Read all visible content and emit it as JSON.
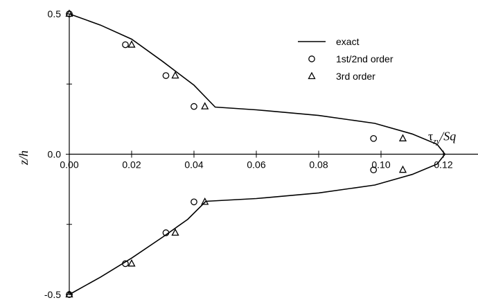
{
  "chart_data": {
    "type": "line",
    "title": "",
    "xlabel": "",
    "ylabel": "z/h",
    "xlim": [
      0,
      0.12
    ],
    "ylim": [
      -0.5,
      0.5
    ],
    "x_ticks": [
      "0.00",
      "0.02",
      "0.04",
      "0.06",
      "0.08",
      "0.10",
      "0.12"
    ],
    "y_ticks": [
      "0.5",
      "0.0",
      "-0.5"
    ],
    "x_axis_annotation": {
      "symbol": "τ",
      "subscript": "zy",
      "rest": "/Sq"
    },
    "legend_position": "top-right",
    "grid": false,
    "series": [
      {
        "name": "exact",
        "type": "line",
        "points": [
          [
            0.0,
            0.5
          ],
          [
            0.01,
            0.46
          ],
          [
            0.02,
            0.41
          ],
          [
            0.03,
            0.33
          ],
          [
            0.04,
            0.246
          ],
          [
            0.0468,
            0.168
          ],
          [
            0.06,
            0.158
          ],
          [
            0.08,
            0.138
          ],
          [
            0.098,
            0.11
          ],
          [
            0.11,
            0.072
          ],
          [
            0.118,
            0.035
          ],
          [
            0.1205,
            0.0
          ],
          [
            0.118,
            -0.035
          ],
          [
            0.11,
            -0.072
          ],
          [
            0.098,
            -0.11
          ],
          [
            0.08,
            -0.138
          ],
          [
            0.06,
            -0.158
          ],
          [
            0.0438,
            -0.168
          ],
          [
            0.038,
            -0.232
          ],
          [
            0.03,
            -0.295
          ],
          [
            0.02,
            -0.37
          ],
          [
            0.01,
            -0.438
          ],
          [
            0.0,
            -0.5
          ]
        ]
      },
      {
        "name": "1st/2nd order",
        "type": "scatter",
        "marker": "circle",
        "points": [
          [
            0.0,
            0.5
          ],
          [
            0.018,
            0.39
          ],
          [
            0.031,
            0.28
          ],
          [
            0.04,
            0.17
          ],
          [
            0.0976,
            0.056
          ],
          [
            0.0976,
            -0.056
          ],
          [
            0.04,
            -0.17
          ],
          [
            0.031,
            -0.28
          ],
          [
            0.018,
            -0.39
          ],
          [
            0.0,
            -0.5
          ]
        ]
      },
      {
        "name": "3rd order",
        "type": "scatter",
        "marker": "triangle",
        "points": [
          [
            0.0,
            0.5
          ],
          [
            0.02,
            0.39
          ],
          [
            0.034,
            0.28
          ],
          [
            0.0435,
            0.17
          ],
          [
            0.107,
            0.056
          ],
          [
            0.107,
            -0.056
          ],
          [
            0.0435,
            -0.17
          ],
          [
            0.034,
            -0.28
          ],
          [
            0.02,
            -0.39
          ],
          [
            0.0,
            -0.5
          ]
        ]
      }
    ]
  }
}
